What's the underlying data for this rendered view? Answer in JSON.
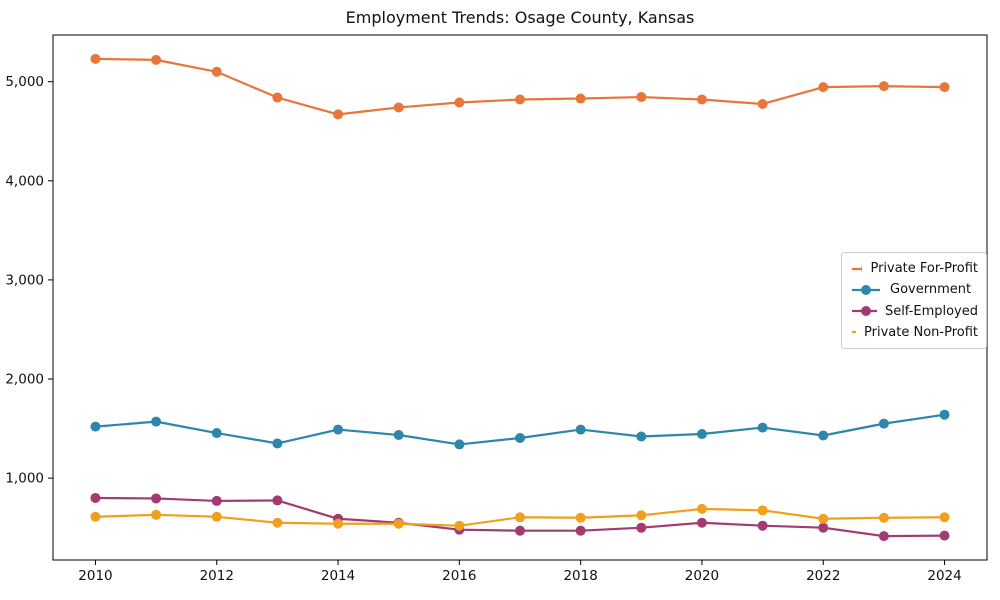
{
  "chart_data": {
    "type": "line",
    "title": "Employment Trends: Osage County, Kansas",
    "xlabel": "",
    "ylabel": "",
    "x": [
      2010,
      2011,
      2012,
      2013,
      2014,
      2015,
      2016,
      2017,
      2018,
      2019,
      2020,
      2021,
      2022,
      2023,
      2024
    ],
    "xticks": [
      2010,
      2012,
      2014,
      2016,
      2018,
      2020,
      2022,
      2024
    ],
    "yticks": [
      1000,
      2000,
      3000,
      4000,
      5000
    ],
    "xlim": [
      2009.3,
      2024.7
    ],
    "ylim": [
      174,
      5471
    ],
    "grid": false,
    "legend_position": "center-right",
    "series": [
      {
        "name": "Private For-Profit",
        "color": "#E8763B",
        "values": [
          5230,
          5220,
          5100,
          4840,
          4670,
          4740,
          4790,
          4820,
          4830,
          4845,
          4820,
          4775,
          4945,
          4955,
          4945
        ]
      },
      {
        "name": "Government",
        "color": "#2E86AB",
        "values": [
          1520,
          1570,
          1455,
          1350,
          1490,
          1435,
          1340,
          1405,
          1490,
          1420,
          1445,
          1510,
          1430,
          1550,
          1640
        ]
      },
      {
        "name": "Self-Employed",
        "color": "#A23B72",
        "values": [
          800,
          795,
          770,
          775,
          590,
          550,
          480,
          470,
          470,
          500,
          550,
          520,
          500,
          415,
          420
        ]
      },
      {
        "name": "Private Non-Profit",
        "color": "#F0A01E",
        "values": [
          610,
          630,
          610,
          550,
          540,
          540,
          520,
          605,
          600,
          625,
          690,
          675,
          590,
          600,
          605
        ]
      }
    ]
  }
}
